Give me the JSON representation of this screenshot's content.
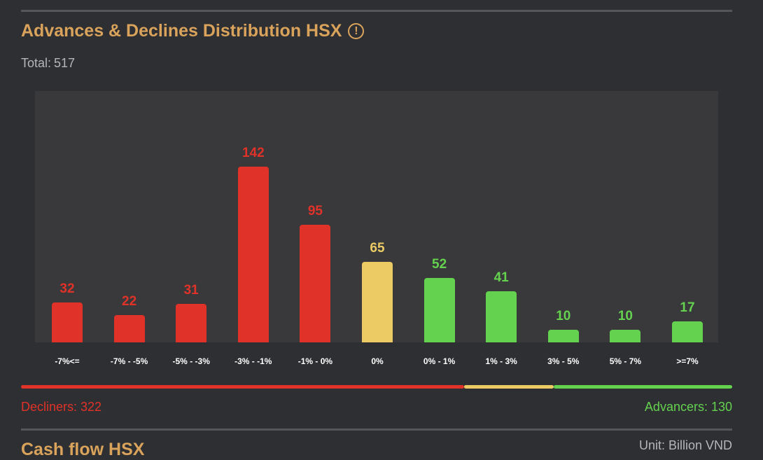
{
  "header": {
    "title": "Advances & Declines Distribution HSX",
    "info_icon": "info-circle-icon",
    "total_label": "Total:",
    "total_value": "517"
  },
  "colors": {
    "decliner": "#e03228",
    "unchanged": "#eccb64",
    "advancer": "#64d24f",
    "plot_bg": "#39393b",
    "title": "#d9a35b"
  },
  "chart_data": {
    "type": "bar",
    "categories": [
      "-7%<=",
      "-7% - -5%",
      "-5% - -3%",
      "-3% - -1%",
      "-1% - 0%",
      "0%",
      "0% - 1%",
      "1% - 3%",
      "3% - 5%",
      "5% - 7%",
      ">=7%"
    ],
    "values": [
      32,
      22,
      31,
      142,
      95,
      65,
      52,
      41,
      10,
      10,
      17
    ],
    "bar_colors": [
      "decliner",
      "decliner",
      "decliner",
      "decliner",
      "decliner",
      "unchanged",
      "advancer",
      "advancer",
      "advancer",
      "advancer",
      "advancer"
    ],
    "title": "",
    "xlabel": "",
    "ylabel": "",
    "grid": false,
    "data_labels": true
  },
  "summary": {
    "decliners_label": "Decliners: 322",
    "advancers_label": "Advancers: 130",
    "decliners": 322,
    "unchanged": 65,
    "advancers": 130
  },
  "next_section": {
    "title": "Cash flow HSX",
    "unit": "Unit: Billion VND"
  }
}
